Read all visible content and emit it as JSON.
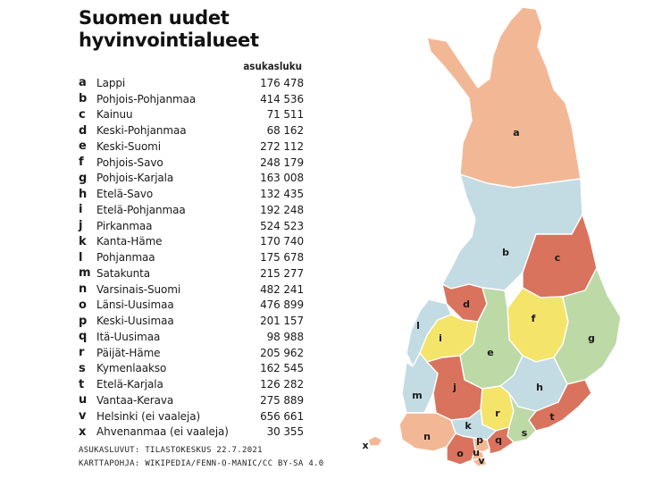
{
  "title": {
    "line1": "Suomen uudet",
    "line2": "hyvinvointialueet"
  },
  "column_header": "asukasluku",
  "regions": [
    {
      "letter": "a",
      "name": "Lappi",
      "population": "176 478"
    },
    {
      "letter": "b",
      "name": "Pohjois-Pohjanmaa",
      "population": "414 536"
    },
    {
      "letter": "c",
      "name": "Kainuu",
      "population": "71 511"
    },
    {
      "letter": "d",
      "name": "Keski-Pohjanmaa",
      "population": "68 162"
    },
    {
      "letter": "e",
      "name": "Keski-Suomi",
      "population": "272 112"
    },
    {
      "letter": "f",
      "name": "Pohjois-Savo",
      "population": "248 179"
    },
    {
      "letter": "g",
      "name": "Pohjois-Karjala",
      "population": "163 008"
    },
    {
      "letter": "h",
      "name": "Etelä-Savo",
      "population": "132 435"
    },
    {
      "letter": "i",
      "name": "Etelä-Pohjanmaa",
      "population": "192 248"
    },
    {
      "letter": "j",
      "name": "Pirkanmaa",
      "population": "524 523"
    },
    {
      "letter": "k",
      "name": "Kanta-Häme",
      "population": "170 740"
    },
    {
      "letter": "l",
      "name": "Pohjanmaa",
      "population": "175 678"
    },
    {
      "letter": "m",
      "name": "Satakunta",
      "population": "215 277"
    },
    {
      "letter": "n",
      "name": "Varsinais-Suomi",
      "population": "482 241"
    },
    {
      "letter": "o",
      "name": "Länsi-Uusimaa",
      "population": "476 899"
    },
    {
      "letter": "p",
      "name": "Keski-Uusimaa",
      "population": "201 157"
    },
    {
      "letter": "q",
      "name": "Itä-Uusimaa",
      "population": "98 988"
    },
    {
      "letter": "r",
      "name": "Päijät-Häme",
      "population": "205 962"
    },
    {
      "letter": "s",
      "name": "Kymenlaakso",
      "population": "162 545"
    },
    {
      "letter": "t",
      "name": "Etelä-Karjala",
      "population": "126 282"
    },
    {
      "letter": "u",
      "name": "Vantaa-Kerava",
      "population": "275 889"
    },
    {
      "letter": "v",
      "name": "Helsinki (ei vaaleja)",
      "population": "656 661"
    },
    {
      "letter": "x",
      "name": "Ahvenanmaa (ei vaaleja)",
      "population": "30 355"
    }
  ],
  "source": {
    "line1": "ASUKASLUVUT: TILASTOKESKUS 22.7.2021",
    "line2": "KARTTAPOHJA: WIKIPEDIA/FENN-O-MANIC/CC BY-SA 4.0"
  },
  "map_labels": [
    "a",
    "b",
    "c",
    "d",
    "e",
    "f",
    "g",
    "h",
    "i",
    "j",
    "k",
    "l",
    "m",
    "n",
    "o",
    "p",
    "q",
    "r",
    "s",
    "t",
    "u",
    "v",
    "x"
  ],
  "colors": {
    "salmon": "#f2b896",
    "lightblue": "#c3dbe3",
    "terracotta": "#d9735d",
    "yellow": "#f5e46a",
    "green": "#bcd9a6",
    "border": "#ffffff"
  }
}
